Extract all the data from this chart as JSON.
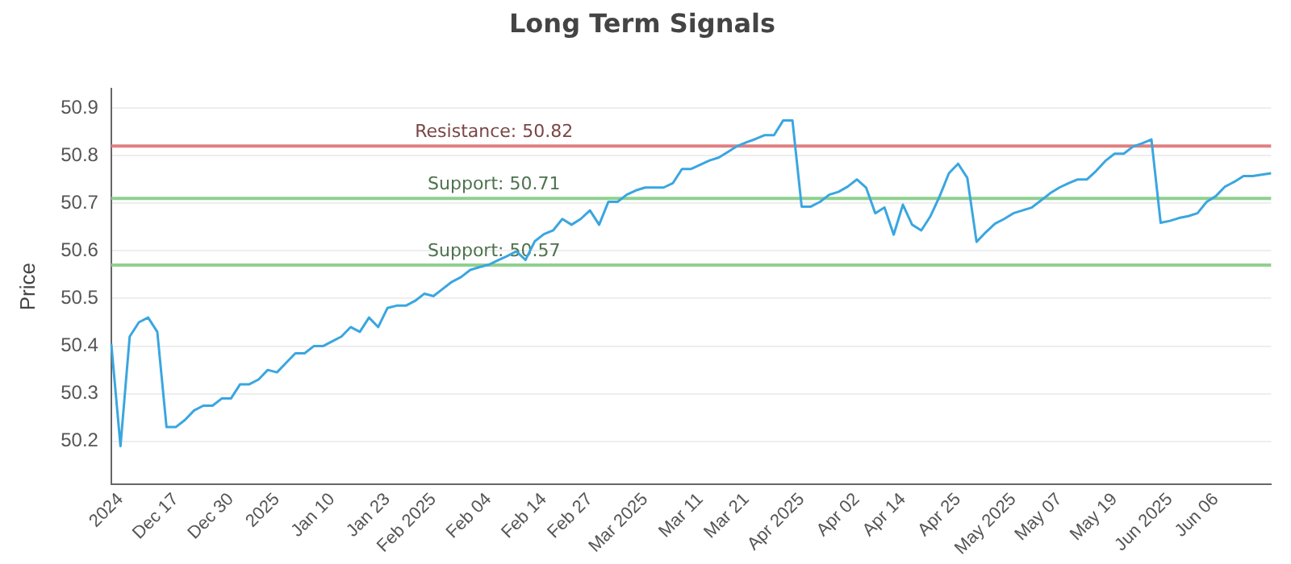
{
  "chart_data": {
    "type": "line",
    "title": "Long Term Signals",
    "ylabel": "Price",
    "categories": [
      null,
      "2024",
      null,
      null,
      null,
      null,
      null,
      "Dec 17",
      null,
      null,
      null,
      null,
      null,
      "Dec 30",
      null,
      null,
      null,
      null,
      "2025",
      null,
      null,
      null,
      null,
      null,
      "Jan 10",
      null,
      null,
      null,
      null,
      null,
      "Jan 23",
      null,
      null,
      null,
      null,
      "Feb 2025",
      null,
      null,
      null,
      null,
      null,
      "Feb 04",
      null,
      null,
      null,
      null,
      null,
      "Feb 14",
      null,
      null,
      null,
      null,
      "Feb 27",
      null,
      null,
      null,
      null,
      null,
      "Mar 2025",
      null,
      null,
      null,
      null,
      null,
      "Mar 11",
      null,
      null,
      null,
      null,
      "Mar 21",
      null,
      null,
      null,
      null,
      null,
      "Apr 2025",
      null,
      null,
      null,
      null,
      null,
      "Apr 02",
      null,
      null,
      null,
      null,
      "Apr 14",
      null,
      null,
      null,
      null,
      null,
      "Apr 25",
      null,
      null,
      null,
      null,
      null,
      "May 2025",
      null,
      null,
      null,
      null,
      "May 07",
      null,
      null,
      null,
      null,
      null,
      "May 19",
      null,
      null,
      null,
      null,
      null,
      "Jun 2025",
      null,
      null,
      null,
      null,
      "Jun 06",
      null,
      null,
      null,
      null,
      null,
      null
    ],
    "series": [
      {
        "color": "#3aa6e0",
        "values": [
          50.405,
          50.19,
          50.42,
          50.45,
          50.46,
          50.43,
          50.23,
          50.23,
          50.245,
          50.265,
          50.275,
          50.275,
          50.29,
          50.29,
          50.32,
          50.32,
          50.33,
          50.35,
          50.345,
          50.365,
          50.385,
          50.385,
          50.4,
          50.4,
          50.41,
          50.42,
          50.44,
          50.43,
          50.46,
          50.44,
          50.48,
          50.485,
          50.485,
          50.495,
          50.51,
          50.505,
          50.52,
          50.535,
          50.545,
          50.56,
          50.566,
          50.571,
          50.58,
          50.589,
          50.599,
          50.581,
          50.62,
          50.635,
          50.643,
          50.667,
          50.655,
          50.667,
          50.685,
          50.655,
          50.703,
          50.703,
          50.718,
          50.727,
          50.733,
          50.733,
          50.733,
          50.742,
          50.772,
          50.772,
          50.781,
          50.79,
          50.796,
          50.808,
          50.82,
          50.828,
          50.835,
          50.843,
          50.843,
          50.874,
          50.874,
          50.693,
          50.693,
          50.703,
          50.718,
          50.724,
          50.735,
          50.75,
          50.733,
          50.679,
          50.691,
          50.634,
          50.697,
          50.655,
          50.643,
          50.673,
          50.715,
          50.763,
          50.783,
          50.753,
          50.619,
          50.639,
          50.657,
          50.667,
          50.679,
          50.685,
          50.691,
          50.706,
          50.721,
          50.733,
          50.742,
          50.75,
          50.75,
          50.768,
          50.789,
          50.804,
          50.804,
          50.819,
          50.826,
          50.834,
          50.659,
          50.663,
          50.669,
          50.673,
          50.679,
          50.703,
          50.715,
          50.735,
          50.745,
          50.757,
          50.757,
          50.76,
          50.763
        ]
      }
    ],
    "ylim": [
      50.11,
      50.94
    ],
    "yticks": [
      50.2,
      50.3,
      50.4,
      50.5,
      50.6,
      50.7,
      50.8,
      50.9
    ],
    "ref_lines": [
      {
        "axis": "y",
        "value": 50.82,
        "label": "Resistance: 50.82",
        "color": "#e08080"
      },
      {
        "axis": "y",
        "value": 50.71,
        "label": "Support: 50.71",
        "color": "#8fd08f"
      },
      {
        "axis": "y",
        "value": 50.57,
        "label": "Support: 50.57",
        "color": "#8fd08f"
      }
    ],
    "grid": "y",
    "legend": false,
    "marker": "none",
    "line_style": "solid"
  }
}
